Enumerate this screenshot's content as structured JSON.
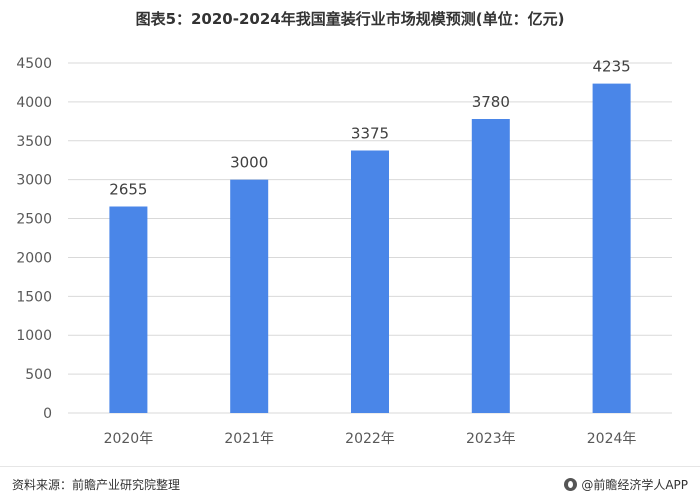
{
  "title": "图表5：2020-2024年我国童装行业市场规模预测(单位：亿元)",
  "footer": {
    "source": "资料来源：前瞻产业研究院整理",
    "brand": "@前瞻经济学人APP"
  },
  "colors": {
    "bar": "#4A86E8",
    "axis_text": "#595959",
    "grid": "#d9d9d9",
    "label": "#404040"
  },
  "chart_data": {
    "type": "bar",
    "title": "图表5：2020-2024年我国童装行业市场规模预测(单位：亿元)",
    "categories": [
      "2020年",
      "2021年",
      "2022年",
      "2023年",
      "2024年"
    ],
    "values": [
      2655,
      3000,
      3375,
      3780,
      4235
    ],
    "data_labels": [
      "2655",
      "3000",
      "3375",
      "3780",
      "4235"
    ],
    "yticks": [
      "0",
      "500",
      "1000",
      "1500",
      "2000",
      "2500",
      "3000",
      "3500",
      "4000",
      "4500"
    ],
    "ylim": [
      0,
      4500
    ],
    "grid": true,
    "legend": false
  }
}
